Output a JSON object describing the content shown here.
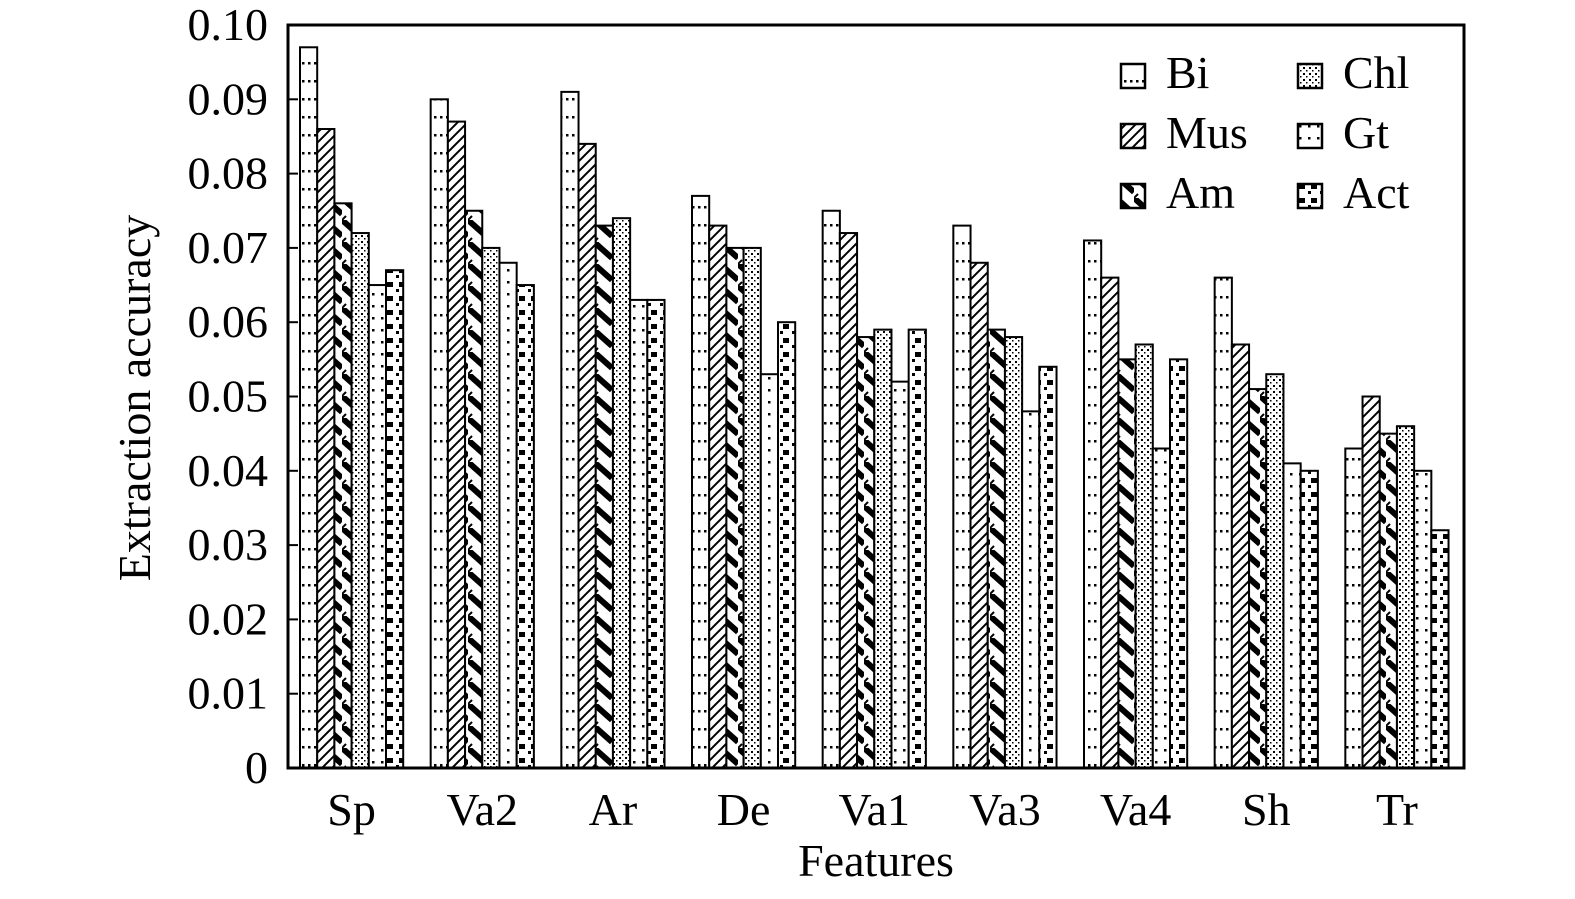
{
  "chart_data": {
    "type": "bar",
    "title": "",
    "xlabel": "Features",
    "ylabel": "Extraction accuracy",
    "ylim": [
      0,
      0.1
    ],
    "yticks": [
      "0",
      "0.01",
      "0.02",
      "0.03",
      "0.04",
      "0.05",
      "0.06",
      "0.07",
      "0.08",
      "0.09",
      "0.10"
    ],
    "grid": false,
    "legend_position": "top-right",
    "categories": [
      "Sp",
      "Va2",
      "Ar",
      "De",
      "Va1",
      "Va3",
      "Va4",
      "Sh",
      "Tr"
    ],
    "series": [
      {
        "name": "Bi",
        "pattern": "dots-sparse",
        "values": [
          0.097,
          0.09,
          0.091,
          0.077,
          0.075,
          0.073,
          0.071,
          0.066,
          0.043
        ]
      },
      {
        "name": "Mus",
        "pattern": "diagonal",
        "values": [
          0.086,
          0.087,
          0.084,
          0.073,
          0.072,
          0.068,
          0.066,
          0.057,
          0.05
        ]
      },
      {
        "name": "Am",
        "pattern": "diagonal-heavy",
        "values": [
          0.076,
          0.075,
          0.073,
          0.07,
          0.058,
          0.059,
          0.055,
          0.051,
          0.045
        ]
      },
      {
        "name": "Chl",
        "pattern": "dots-dense",
        "values": [
          0.072,
          0.07,
          0.074,
          0.07,
          0.059,
          0.058,
          0.057,
          0.053,
          0.046
        ]
      },
      {
        "name": "Gt",
        "pattern": "dots-medium",
        "values": [
          0.065,
          0.068,
          0.063,
          0.053,
          0.052,
          0.048,
          0.043,
          0.041,
          0.04
        ]
      },
      {
        "name": "Act",
        "pattern": "blocks",
        "values": [
          0.067,
          0.065,
          0.063,
          0.06,
          0.059,
          0.054,
          0.055,
          0.04,
          0.032
        ]
      }
    ]
  },
  "colors": {
    "ink": "#000000",
    "background": "#ffffff"
  }
}
